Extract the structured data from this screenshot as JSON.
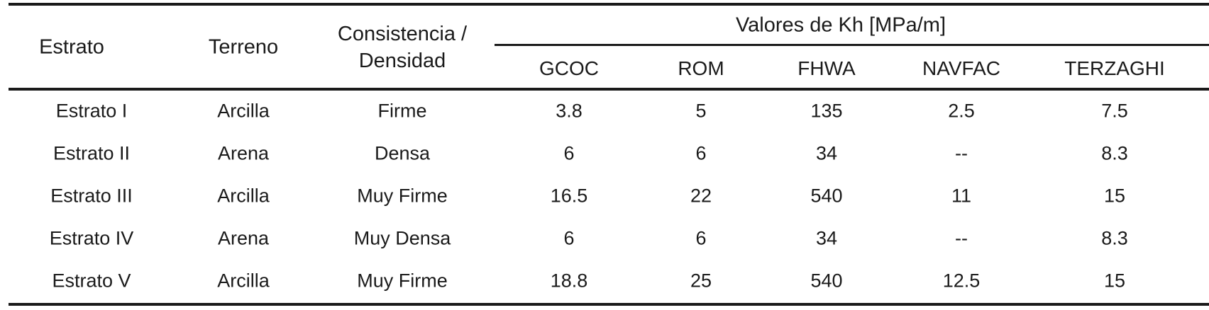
{
  "table": {
    "group_header": "Valores de Kh [MPa/m]",
    "columns": [
      "Estrato",
      "Terreno",
      "Consistencia /",
      "Densidad",
      "GCOC",
      "ROM",
      "FHWA",
      "NAVFAC",
      "TERZAGHI"
    ],
    "rows": [
      [
        "Estrato I",
        "Arcilla",
        "Firme",
        "3.8",
        "5",
        "135",
        "2.5",
        "7.5"
      ],
      [
        "Estrato II",
        "Arena",
        "Densa",
        "6",
        "6",
        "34",
        "--",
        "8.3"
      ],
      [
        "Estrato III",
        "Arcilla",
        "Muy Firme",
        "16.5",
        "22",
        "540",
        "11",
        "15"
      ],
      [
        "Estrato IV",
        "Arena",
        "Muy Densa",
        "6",
        "6",
        "34",
        "--",
        "8.3"
      ],
      [
        "Estrato V",
        "Arcilla",
        "Muy Firme",
        "18.8",
        "25",
        "540",
        "12.5",
        "15"
      ]
    ]
  }
}
